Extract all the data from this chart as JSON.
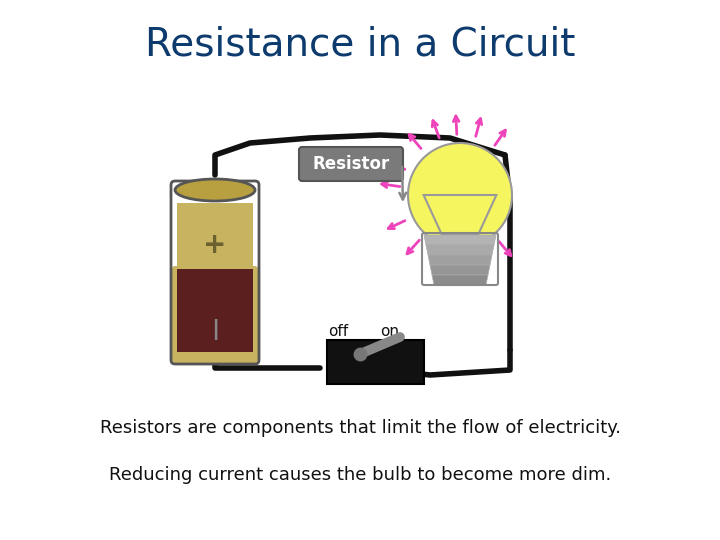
{
  "title": "Resistance in a Circuit",
  "title_color": "#0d3b6e",
  "title_fontsize": 28,
  "resistor_label": "Resistor",
  "resistor_label_color": "white",
  "resistor_box_color": "#7a7a7a",
  "off_label": "off",
  "on_label": "on",
  "label_fontsize": 11,
  "text1": "Resistors are components that limit the flow of electricity.",
  "text2": "Reducing current causes the bulb to become more dim.",
  "text_fontsize": 13,
  "text_color": "#111111",
  "background_color": "#ffffff",
  "wire_color": "#111111",
  "battery_top_color": "#c8b460",
  "battery_bottom_color": "#5c1f1f",
  "battery_outline": "#555555",
  "bulb_body_color": "#f5f560",
  "bulb_outline_color": "#999999",
  "bulb_base_color": "#bbbbbb",
  "ray_color": "#ee44bb",
  "switch_body_color": "#111111",
  "switch_lever_color": "#888888"
}
